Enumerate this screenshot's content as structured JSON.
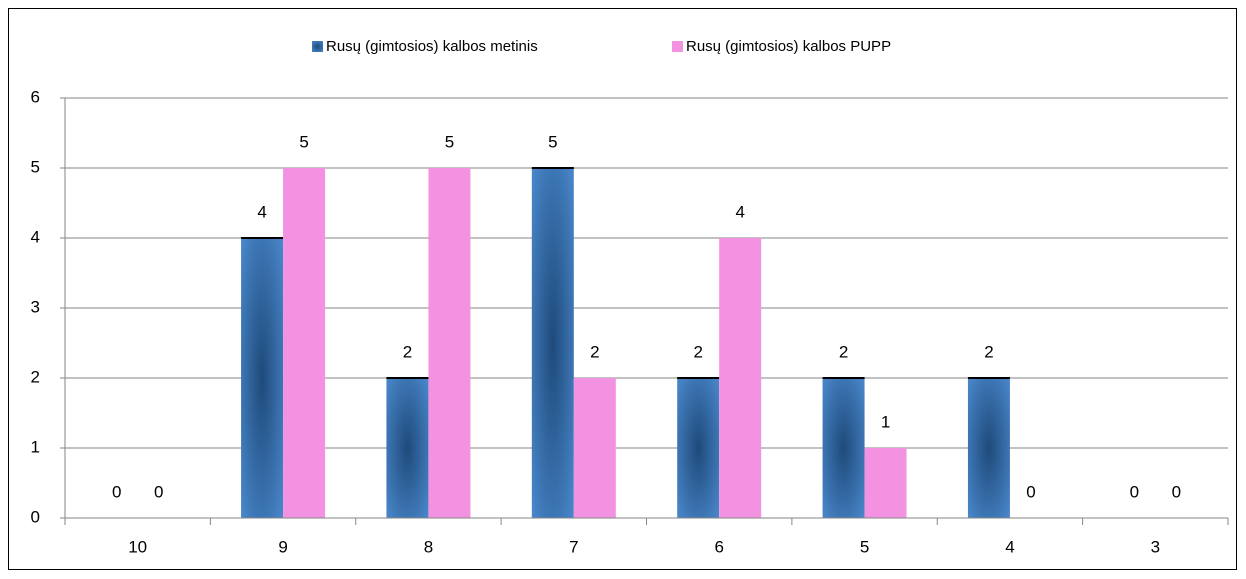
{
  "chart_data": {
    "type": "bar",
    "categories": [
      "10",
      "9",
      "8",
      "7",
      "6",
      "5",
      "4",
      "3"
    ],
    "series": [
      {
        "name": "Rusų (gimtosios) kalbos metinis",
        "color": "#3a6fb0",
        "values": [
          0,
          4,
          2,
          5,
          2,
          2,
          2,
          0
        ]
      },
      {
        "name": "Rusų (gimtosios) kalbos PUPP",
        "color": "#f492e2",
        "values": [
          0,
          5,
          5,
          2,
          4,
          1,
          0,
          0
        ]
      }
    ],
    "ylim": [
      0,
      6
    ],
    "yticks": [
      0,
      1,
      2,
      3,
      4,
      5,
      6
    ],
    "grid": true,
    "legend": "top"
  }
}
